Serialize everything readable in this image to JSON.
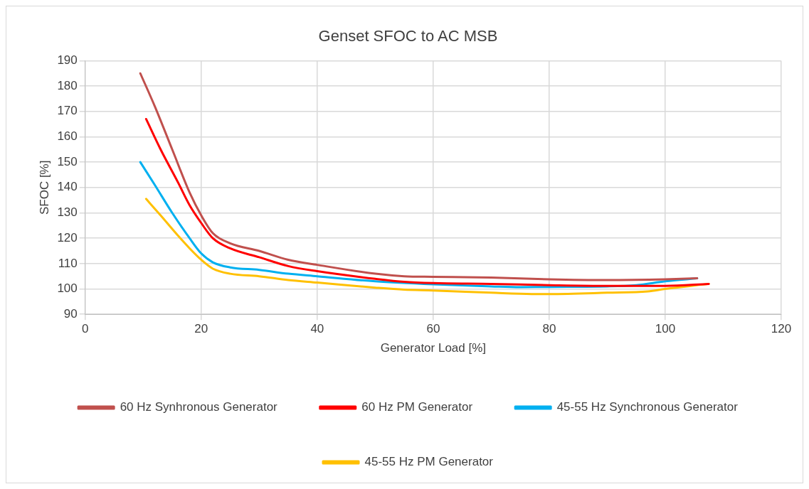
{
  "chart_data": {
    "type": "line",
    "title": "Genset SFOC to AC MSB",
    "xlabel": "Generator Load [%]",
    "ylabel": "SFOC [%]",
    "xlim": [
      0,
      120
    ],
    "xticks": [
      0,
      20,
      40,
      60,
      80,
      100,
      120
    ],
    "ylim": [
      90,
      190
    ],
    "yticks": [
      90,
      100,
      110,
      120,
      130,
      140,
      150,
      160,
      170,
      180,
      190
    ],
    "grid": true,
    "legend": "bottom",
    "marker": "none",
    "line_style": "solid",
    "series": [
      {
        "name": "60 Hz Synhronous Generator",
        "color": "#c0504d",
        "x": [
          9.5,
          12,
          15,
          18,
          20,
          22,
          25,
          30,
          35,
          40,
          50,
          55,
          60,
          70,
          80,
          90,
          100,
          105.5
        ],
        "values": [
          185,
          172,
          155,
          138,
          129,
          122,
          118,
          115,
          111.5,
          109.5,
          106,
          105,
          104.8,
          104.5,
          103.8,
          103.5,
          103.8,
          104.2
        ]
      },
      {
        "name": "60 Hz PM Generator",
        "color": "#ff0000",
        "x": [
          10.5,
          13,
          16,
          18,
          20,
          22,
          25,
          30,
          35,
          40,
          50,
          55,
          60,
          70,
          80,
          90,
          100,
          107.5
        ],
        "values": [
          167,
          155,
          142,
          133,
          126,
          120,
          116,
          112.5,
          109,
          107,
          104,
          102.8,
          102.3,
          102,
          101.5,
          101.2,
          101.2,
          102
        ]
      },
      {
        "name": "45-55 Hz Synchronous Generator",
        "color": "#00b0f0",
        "x": [
          9.5,
          12,
          15,
          18,
          20,
          22,
          25,
          30,
          35,
          40,
          50,
          60,
          70,
          75,
          80,
          90,
          95,
          100,
          105.5
        ],
        "values": [
          150,
          141,
          130,
          120,
          114,
          110.5,
          108.5,
          107.5,
          106,
          105,
          103,
          101.8,
          101,
          100.7,
          100.8,
          101,
          101.5,
          103,
          104.2
        ]
      },
      {
        "name": "45-55 Hz PM Generator",
        "color": "#ffc000",
        "x": [
          10.5,
          13,
          16,
          18,
          20,
          22,
          25,
          30,
          35,
          40,
          50,
          55,
          60,
          70,
          77,
          80,
          90,
          97,
          100,
          107.5
        ],
        "values": [
          135.5,
          129,
          121,
          116,
          111.5,
          108,
          106,
          105,
          103.5,
          102.5,
          100.5,
          99.7,
          99.4,
          98.5,
          98,
          98,
          98.5,
          99,
          100,
          102
        ]
      }
    ]
  }
}
